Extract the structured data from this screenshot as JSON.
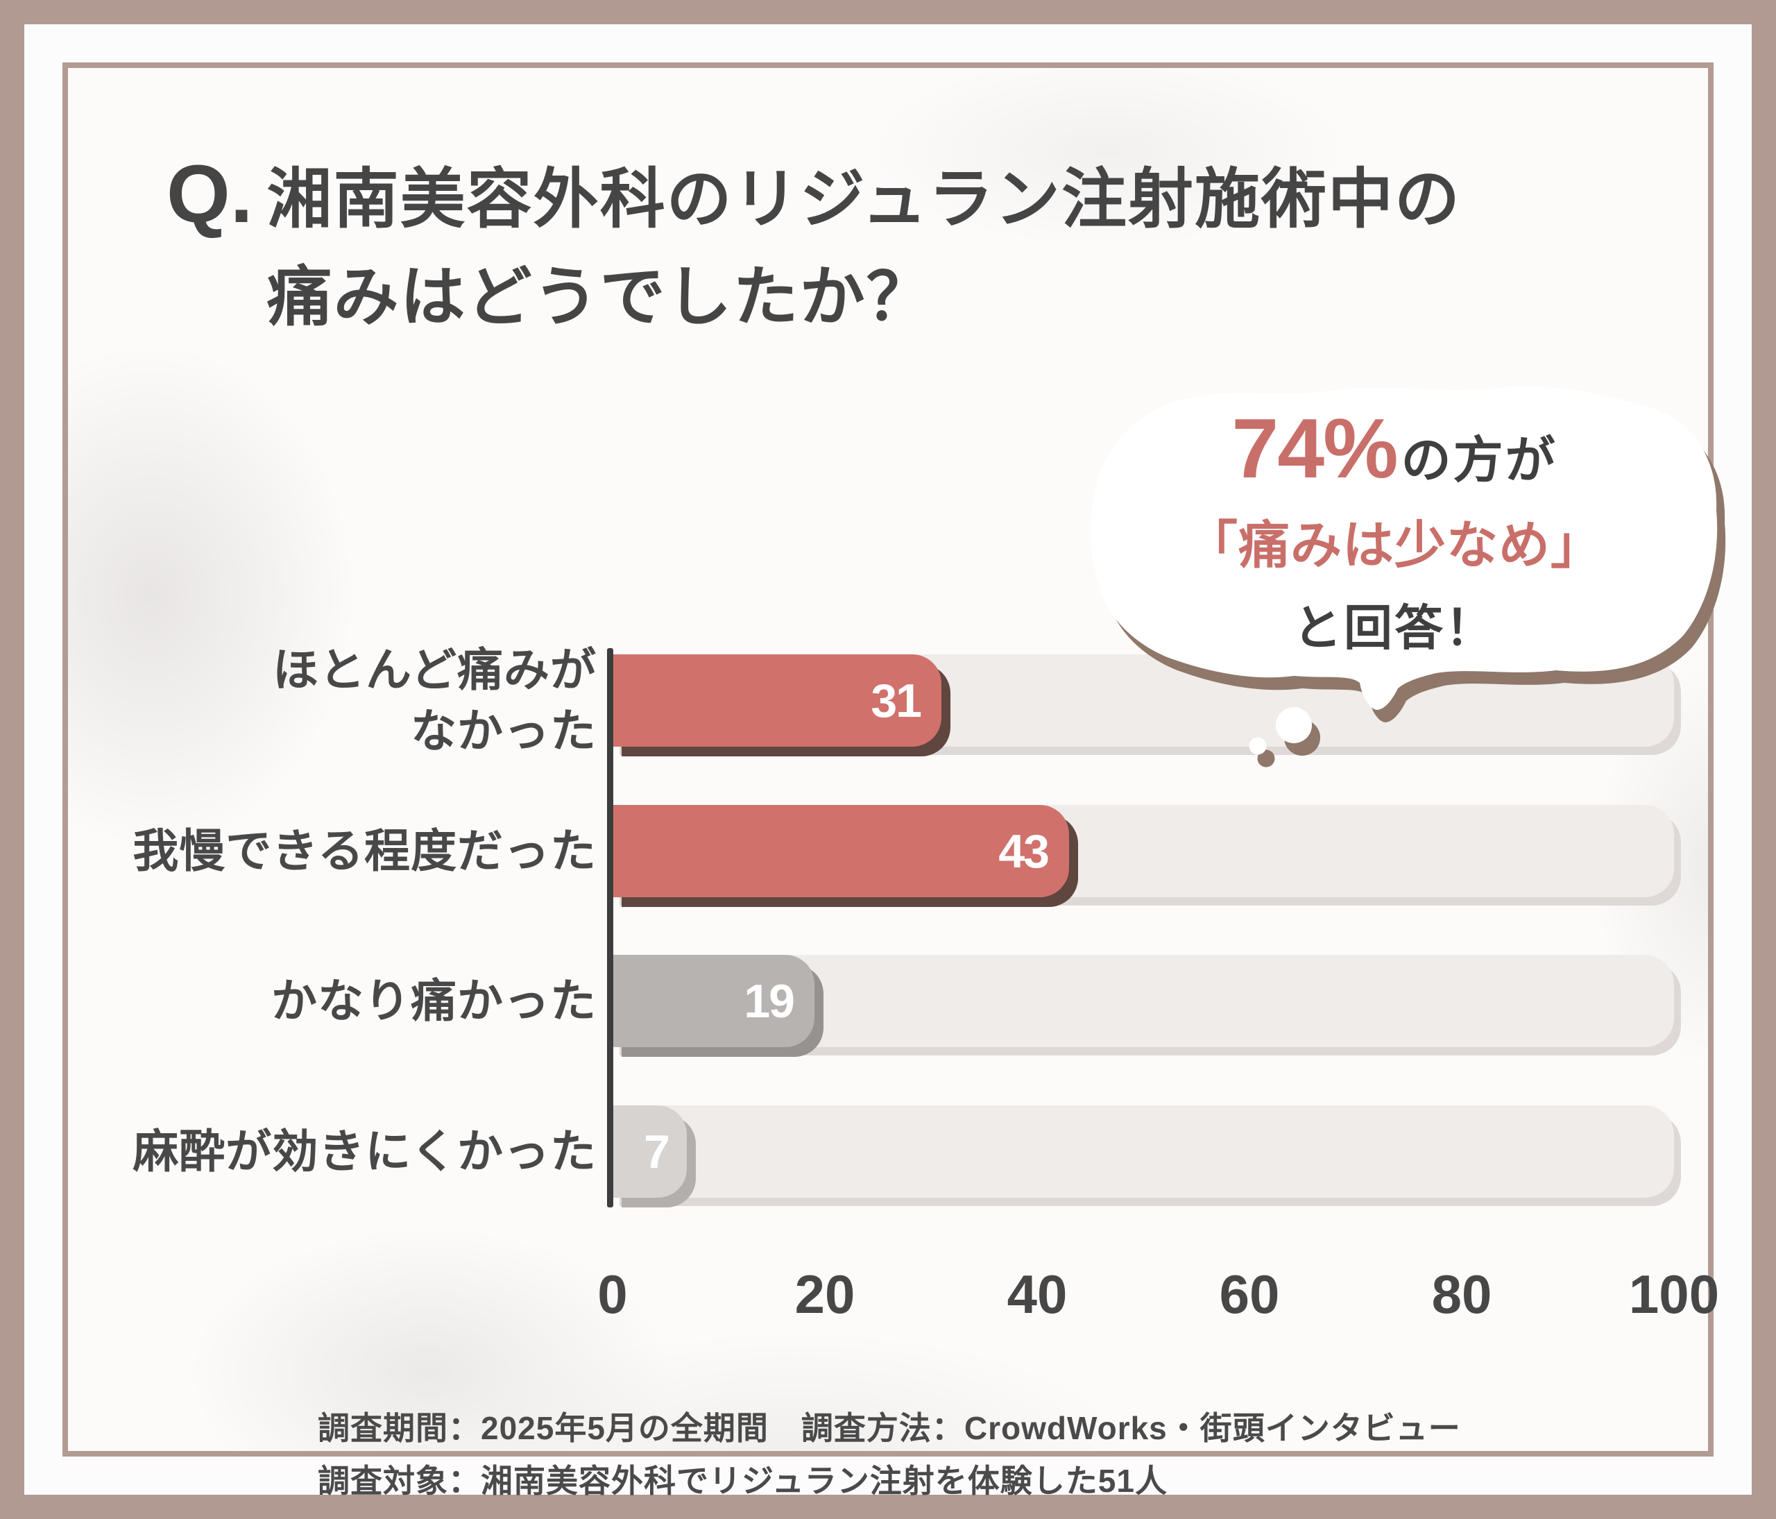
{
  "title": {
    "q": "Q.",
    "line1": "湘南美容外科のリジュラン注射施術中の",
    "line2": "痛みはどうでしたか？"
  },
  "bubble": {
    "stat": "74%",
    "stat_suffix": "の方が",
    "line2": "「痛みは少なめ」",
    "line3": "と回答！"
  },
  "chart_data": {
    "type": "bar",
    "orientation": "horizontal",
    "title": "湘南美容外科のリジュラン注射施術中の痛みはどうでしたか？",
    "categories": [
      "ほとんど痛みが\nなかった",
      "我慢できる程度だった",
      "かなり痛かった",
      "麻酔が効きにくかった"
    ],
    "values": [
      31,
      43,
      19,
      7
    ],
    "xlim": [
      0,
      100
    ],
    "x_ticks": [
      "0",
      "20",
      "40",
      "60",
      "80",
      "100"
    ],
    "grid": false,
    "legend": false,
    "bar_colors": [
      "#d0716c",
      "#d0716c",
      "#b7b3b1",
      "#d6d3d1"
    ],
    "bar_shadow_colors": [
      "#5f463f",
      "#5f463f",
      "#969290",
      "#b3afad"
    ],
    "value_label_color": "#ffffff"
  },
  "footer": {
    "line1": "調査期間：2025年5月の全期間　調査方法：CrowdWorks・街頭インタビュー",
    "line2": "調査対象：湘南美容外科でリジュラン注射を体験した51人"
  },
  "colors": {
    "frame": "#b29b93",
    "background": "#fcfbfa",
    "accent_salmon": "#c96f6a",
    "text_dark": "#454545",
    "track": "#efecea",
    "axis": "#3d3d3d",
    "bubble_fill": "#ffffff",
    "bubble_shadow": "#8f7769"
  }
}
